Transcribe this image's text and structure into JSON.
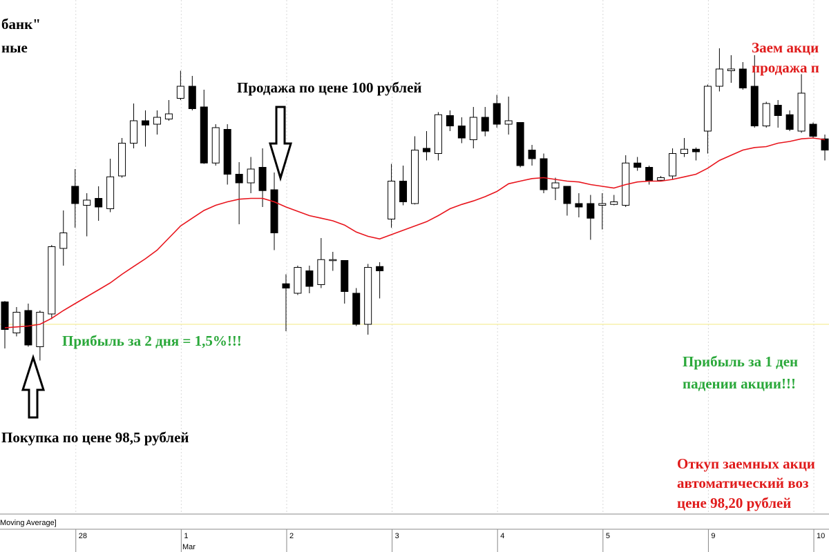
{
  "chart_data": {
    "type": "candlestick",
    "title_lines": [
      "банк\"",
      "ные"
    ],
    "indicator_label": "Moving Average]",
    "month_label": "Mar",
    "categories": [
      null,
      null,
      null,
      null,
      null,
      null,
      "28",
      null,
      null,
      null,
      null,
      null,
      null,
      null,
      null,
      "1",
      null,
      null,
      null,
      null,
      null,
      null,
      null,
      null,
      "2",
      null,
      null,
      null,
      null,
      null,
      null,
      null,
      null,
      "3",
      null,
      null,
      null,
      null,
      null,
      null,
      null,
      null,
      "4",
      null,
      null,
      null,
      null,
      null,
      null,
      null,
      null,
      "5",
      null,
      null,
      null,
      null,
      null,
      null,
      null,
      null,
      "9",
      null,
      null,
      null,
      null,
      null,
      null,
      null,
      null,
      "10",
      null
    ],
    "open": [
      98.76,
      98.4,
      98.66,
      98.24,
      98.62,
      99.38,
      100.1,
      99.88,
      99.96,
      99.84,
      100.22,
      100.6,
      100.86,
      100.82,
      100.88,
      101.12,
      101.26,
      101.02,
      100.37,
      100.76,
      100.24,
      100.14,
      100.32,
      100.06,
      98.97,
      98.86,
      99.12,
      98.96,
      99.24,
      99.24,
      98.86,
      98.5,
      99.17,
      99.72,
      100.16,
      99.9,
      100.54,
      100.48,
      100.92,
      100.8,
      100.64,
      100.9,
      101.06,
      100.82,
      100.84,
      100.52,
      100.42,
      100.08,
      100.1,
      99.9,
      99.9,
      99.88,
      99.89,
      99.88,
      100.37,
      100.32,
      100.17,
      100.22,
      100.48,
      100.53,
      100.74,
      101.26,
      101.44,
      101.46,
      101.26,
      100.8,
      101.04,
      100.93,
      100.74,
      100.82,
      100.65
    ],
    "high": [
      98.77,
      98.7,
      98.74,
      98.66,
      99.42,
      99.82,
      100.3,
      100.02,
      100.1,
      100.42,
      100.66,
      101.06,
      100.98,
      100.98,
      101.1,
      101.44,
      101.38,
      101.22,
      100.82,
      100.82,
      100.38,
      100.44,
      100.54,
      100.26,
      99.08,
      99.18,
      99.18,
      99.5,
      99.34,
      99.24,
      98.92,
      99.2,
      99.22,
      100.36,
      100.34,
      100.68,
      100.74,
      100.96,
      100.98,
      100.9,
      101.02,
      101.02,
      101.16,
      101.14,
      100.84,
      100.58,
      100.48,
      100.2,
      100.1,
      100.02,
      100.0,
      100.02,
      100.0,
      100.46,
      100.44,
      100.34,
      100.22,
      100.54,
      100.66,
      100.55,
      101.28,
      101.7,
      101.62,
      101.54,
      101.62,
      101.08,
      101.1,
      100.98,
      101.4,
      100.84,
      100.7
    ],
    "low": [
      98.22,
      98.36,
      98.24,
      98.08,
      98.56,
      99.18,
      99.62,
      99.52,
      99.7,
      99.8,
      100.2,
      100.54,
      100.56,
      100.7,
      100.86,
      101.1,
      100.98,
      100.36,
      100.34,
      100.12,
      99.66,
      100.02,
      99.86,
      99.36,
      98.42,
      98.84,
      98.86,
      98.92,
      99.12,
      98.74,
      98.48,
      98.38,
      98.8,
      99.62,
      99.88,
      99.89,
      100.4,
      100.4,
      100.74,
      100.6,
      100.54,
      100.68,
      100.78,
      100.7,
      100.32,
      100.34,
      100.02,
      99.94,
      99.76,
      99.74,
      99.48,
      99.6,
      99.88,
      99.86,
      100.28,
      100.12,
      100.16,
      100.18,
      100.44,
      100.4,
      100.48,
      101.2,
      101.3,
      101.22,
      100.78,
      100.78,
      100.78,
      100.74,
      100.72,
      100.66,
      100.4
    ],
    "close": [
      98.44,
      98.64,
      98.26,
      98.64,
      99.4,
      99.56,
      99.9,
      99.94,
      99.86,
      100.21,
      100.6,
      100.86,
      100.81,
      100.9,
      100.94,
      101.26,
      101.0,
      100.37,
      100.78,
      100.24,
      100.14,
      100.3,
      100.05,
      99.56,
      98.92,
      99.16,
      98.94,
      99.25,
      99.25,
      98.88,
      98.5,
      99.16,
      99.12,
      100.16,
      99.92,
      100.52,
      100.5,
      100.93,
      100.8,
      100.66,
      100.9,
      100.74,
      100.82,
      100.86,
      100.34,
      100.42,
      100.06,
      100.14,
      99.9,
      99.86,
      99.73,
      99.9,
      99.92,
      100.37,
      100.32,
      100.16,
      100.2,
      100.48,
      100.53,
      100.5,
      101.26,
      101.46,
      101.46,
      101.24,
      100.8,
      101.06,
      100.92,
      100.76,
      101.18,
      100.68,
      100.52
    ],
    "moving_average": [
      98.46,
      98.47,
      98.48,
      98.5,
      98.57,
      98.66,
      98.74,
      98.82,
      98.9,
      98.98,
      99.08,
      99.17,
      99.26,
      99.36,
      99.5,
      99.64,
      99.73,
      99.82,
      99.88,
      99.92,
      99.95,
      99.96,
      99.96,
      99.92,
      99.86,
      99.81,
      99.76,
      99.73,
      99.7,
      99.65,
      99.57,
      99.52,
      99.49,
      99.54,
      99.59,
      99.64,
      99.69,
      99.76,
      99.84,
      99.89,
      99.93,
      99.98,
      100.04,
      100.13,
      100.16,
      100.19,
      100.2,
      100.18,
      100.16,
      100.15,
      100.12,
      100.1,
      100.08,
      100.12,
      100.15,
      100.16,
      100.16,
      100.18,
      100.21,
      100.24,
      100.31,
      100.4,
      100.46,
      100.52,
      100.55,
      100.56,
      100.6,
      100.62,
      100.65,
      100.66,
      100.64
    ],
    "ma_color": "#e8141c",
    "up_color": "#ffffff",
    "down_color": "#000000",
    "reference_line": {
      "value": 98.5,
      "color": "#f5ee9a"
    },
    "ylim": [
      96.58,
      102.26
    ],
    "annotations": {
      "sell": "Продажа по цене 100 рублей",
      "buy": "Покупка по цене 98,5 рублей",
      "profit_2_days": "Прибыль за 2 дня = 1,5%!!!",
      "borrow": [
        "Заем акци",
        "продажа п"
      ],
      "profit_1_day": [
        "Прибыль за 1 ден",
        "падении акции!!!"
      ],
      "buyback": [
        "Откуп заемных акци",
        "автоматический воз",
        "цене 98,20 рублей"
      ]
    }
  }
}
